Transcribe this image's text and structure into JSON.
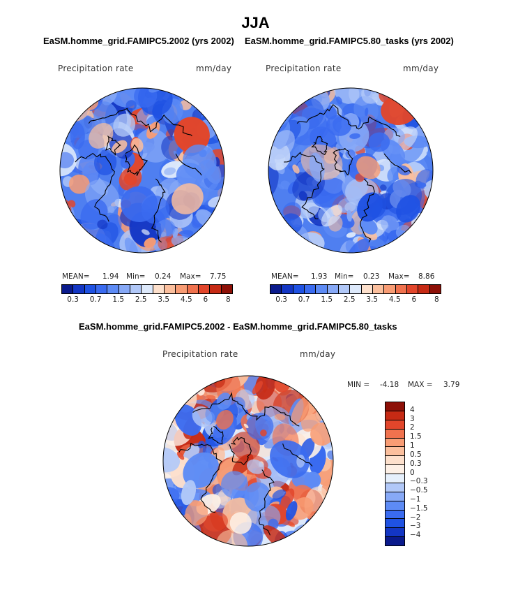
{
  "figure": {
    "season": "JJA",
    "panel1": {
      "title": "EaSM.homme_grid.FAMIPC5.2002 (yrs 2002)",
      "variable": "Precipitation rate",
      "units": "mm/day",
      "stats": {
        "mean_label": "MEAN=",
        "mean": "1.94",
        "min_label": "Min=",
        "min": "0.24",
        "max_label": "Max=",
        "max": "7.75"
      }
    },
    "panel2": {
      "title": "EaSM.homme_grid.FAMIPC5.80_tasks (yrs 2002)",
      "variable": "Precipitation rate",
      "units": "mm/day",
      "stats": {
        "mean_label": "MEAN=",
        "mean": "1.93",
        "min_label": "Min=",
        "min": "0.23",
        "max_label": "Max=",
        "max": "8.86"
      }
    },
    "diff": {
      "title": "EaSM.homme_grid.FAMIPC5.2002 - EaSM.homme_grid.FAMIPC5.80_tasks",
      "variable": "Precipitation rate",
      "units": "mm/day",
      "stats": {
        "min_label": "MIN =",
        "min": "-4.18",
        "max_label": "MAX =",
        "max": "3.79"
      }
    }
  },
  "colorbars": {
    "field_ticks": [
      "0.3",
      "0.7",
      "1.5",
      "2.5",
      "3.5",
      "4.5",
      "6",
      "8"
    ],
    "field_colors": [
      "#0a1a8c",
      "#1336c4",
      "#1f52e3",
      "#3a6bf0",
      "#5d8bf5",
      "#87a9f7",
      "#b1c8f8",
      "#dde9fb",
      "#fde0cc",
      "#fbbf9d",
      "#f89c74",
      "#f0724e",
      "#e2462b",
      "#c62a14",
      "#8d1007"
    ],
    "diff_ticks": [
      "4",
      "3",
      "2",
      "1.5",
      "1",
      "0.5",
      "0.3",
      "0",
      "−0.3",
      "−0.5",
      "−1",
      "−1.5",
      "−2",
      "−3",
      "−4"
    ],
    "diff_colors": [
      "#8d1007",
      "#c62a14",
      "#e2462b",
      "#f0724e",
      "#f89c74",
      "#fbbf9d",
      "#fde0cc",
      "#fdf0e6",
      "#e6f0fc",
      "#b1c8f8",
      "#87a9f7",
      "#5d8bf5",
      "#3a6bf0",
      "#1f52e3",
      "#1336c4",
      "#0a1a8c"
    ]
  }
}
